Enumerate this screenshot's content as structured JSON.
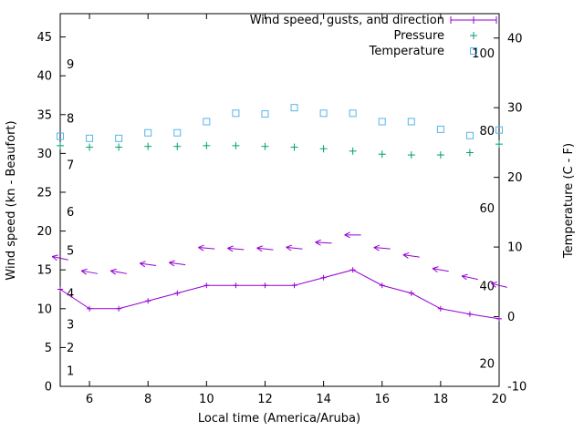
{
  "figure": {
    "background": "#ffffff"
  },
  "chart_data": {
    "type": "line",
    "title": "",
    "xlabel": "Local time (America/Aruba)",
    "ylabel_left": "Wind speed (kn - Beaufort)",
    "ylabel_right": "Temperature (C - F)",
    "x_range": [
      5,
      20
    ],
    "y_left_range": [
      0,
      48
    ],
    "y_right_range": [
      -10,
      43.5
    ],
    "x_ticks": [
      6,
      8,
      10,
      12,
      14,
      16,
      18,
      20
    ],
    "y_left_ticks": [
      0,
      5,
      10,
      15,
      20,
      25,
      30,
      35,
      40,
      45
    ],
    "y_right_ticks": [
      -10,
      0,
      10,
      20,
      30,
      40
    ],
    "beaufort_scale_labels": [
      {
        "label": "1",
        "kn": 2
      },
      {
        "label": "2",
        "kn": 5
      },
      {
        "label": "3",
        "kn": 8
      },
      {
        "label": "4",
        "kn": 12
      },
      {
        "label": "5",
        "kn": 17.5
      },
      {
        "label": "6",
        "kn": 22.5
      },
      {
        "label": "7",
        "kn": 28.5
      },
      {
        "label": "8",
        "kn": 34.5
      },
      {
        "label": "9",
        "kn": 41.5
      }
    ],
    "fahrenheit_scale_labels": [
      {
        "label": "20",
        "c": -6.7
      },
      {
        "label": "40",
        "c": 4.4
      },
      {
        "label": "60",
        "c": 15.6
      },
      {
        "label": "80",
        "c": 26.7
      },
      {
        "label": "100",
        "c": 37.8
      }
    ],
    "x": [
      5,
      6,
      7,
      8,
      9,
      10,
      11,
      12,
      13,
      14,
      15,
      16,
      17,
      18,
      19,
      20
    ],
    "series": [
      {
        "name": "Wind speed",
        "type": "line-plus",
        "axis": "left",
        "color": "#9400D3",
        "values": [
          12.5,
          10,
          10,
          11,
          12,
          13,
          13,
          13,
          13,
          14,
          15,
          13,
          12,
          10,
          9.3,
          8.7
        ]
      },
      {
        "name": "Wind gusts with direction",
        "type": "arrow",
        "axis": "left",
        "color": "#9400D3",
        "values": [
          16.5,
          14.7,
          14.7,
          15.7,
          15.8,
          17.8,
          17.7,
          17.7,
          17.8,
          18.5,
          19.5,
          17.8,
          16.8,
          15,
          14,
          13
        ],
        "angle_deg": [
          12,
          10,
          10,
          8,
          8,
          5,
          5,
          6,
          6,
          3,
          0,
          5,
          8,
          10,
          12,
          14
        ]
      },
      {
        "name": "Pressure",
        "type": "plus",
        "axis": "left",
        "color": "#009E73",
        "values": [
          31.0,
          30.8,
          30.8,
          30.9,
          30.9,
          31.0,
          31.0,
          30.9,
          30.8,
          30.6,
          30.3,
          29.9,
          29.8,
          29.8,
          30.1,
          31.2
        ]
      },
      {
        "name": "Temperature",
        "type": "square",
        "axis": "right",
        "color": "#56B4E9",
        "values": [
          25.9,
          25.6,
          25.6,
          26.4,
          26.4,
          28.0,
          29.2,
          29.1,
          30.0,
          29.2,
          29.2,
          28.0,
          28.0,
          26.9,
          26.0,
          26.8
        ]
      }
    ],
    "legend": [
      {
        "label": "Wind speed, gusts, and direction",
        "marker": "line-plus",
        "color": "#9400D3"
      },
      {
        "label": "Pressure",
        "marker": "plus",
        "color": "#009E73"
      },
      {
        "label": "Temperature",
        "marker": "square",
        "color": "#56B4E9"
      }
    ],
    "axis_color": "#000000"
  }
}
